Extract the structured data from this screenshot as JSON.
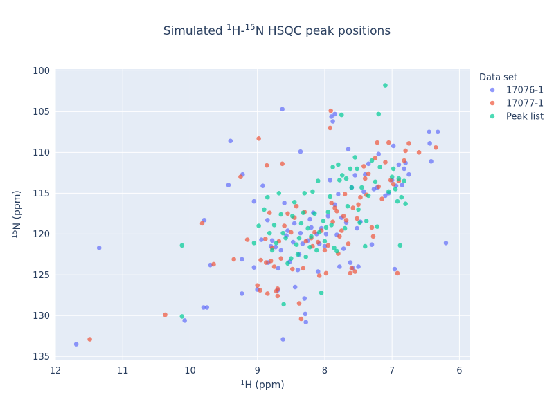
{
  "chart_data": {
    "type": "scatter",
    "title": {
      "parts": [
        {
          "text": "Simulated "
        },
        {
          "text": "1",
          "sup": true
        },
        {
          "text": "H-"
        },
        {
          "text": "15",
          "sup": true
        },
        {
          "text": "N HSQC peak positions"
        }
      ]
    },
    "xlabel": {
      "parts": [
        {
          "text": "1",
          "sup": true
        },
        {
          "text": "H (ppm)"
        }
      ]
    },
    "ylabel": {
      "parts": [
        {
          "text": "15",
          "sup": true
        },
        {
          "text": "N (ppm)"
        }
      ]
    },
    "xlim": [
      12.0,
      5.85
    ],
    "ylim": [
      135.4,
      99.8
    ],
    "x_reversed": true,
    "y_reversed": true,
    "xticks": [
      12,
      11,
      10,
      9,
      8,
      7,
      6
    ],
    "yticks": [
      100,
      105,
      110,
      115,
      120,
      125,
      130,
      135
    ],
    "grid": true,
    "legend": {
      "title": "Data set",
      "position": "right"
    },
    "series": [
      {
        "name": "17076-1",
        "color": "#636efa",
        "points": [
          [
            11.69,
            133.5
          ],
          [
            11.35,
            121.7
          ],
          [
            10.08,
            130.6
          ],
          [
            9.8,
            129.0
          ],
          [
            9.75,
            129.0
          ],
          [
            9.79,
            118.3
          ],
          [
            9.7,
            123.8
          ],
          [
            9.4,
            108.6
          ],
          [
            9.43,
            114.0
          ],
          [
            9.22,
            112.7
          ],
          [
            9.23,
            123.1
          ],
          [
            9.23,
            127.3
          ],
          [
            9.05,
            116.0
          ],
          [
            9.05,
            124.1
          ],
          [
            9.0,
            126.8
          ],
          [
            8.94,
            120.7
          ],
          [
            8.92,
            114.1
          ],
          [
            8.85,
            118.3
          ],
          [
            8.84,
            123.5
          ],
          [
            8.8,
            121.5
          ],
          [
            8.78,
            120.8
          ],
          [
            8.73,
            121.6
          ],
          [
            8.7,
            126.9
          ],
          [
            8.69,
            124.2
          ],
          [
            8.65,
            122.0
          ],
          [
            8.63,
            104.7
          ],
          [
            8.62,
            132.9
          ],
          [
            8.6,
            116.2
          ],
          [
            8.57,
            120.2
          ],
          [
            8.55,
            119.6
          ],
          [
            8.52,
            123.4
          ],
          [
            8.47,
            121.0
          ],
          [
            8.45,
            118.7
          ],
          [
            8.44,
            126.5
          ],
          [
            8.4,
            124.4
          ],
          [
            8.38,
            122.5
          ],
          [
            8.36,
            109.9
          ],
          [
            8.36,
            119.9
          ],
          [
            8.33,
            121.2
          ],
          [
            8.3,
            127.9
          ],
          [
            8.29,
            129.8
          ],
          [
            8.28,
            130.8
          ],
          [
            8.25,
            120.8
          ],
          [
            8.22,
            118.2
          ],
          [
            8.2,
            119.2
          ],
          [
            8.17,
            117.4
          ],
          [
            8.12,
            120.0
          ],
          [
            8.1,
            124.6
          ],
          [
            8.08,
            121.2
          ],
          [
            8.05,
            119.3
          ],
          [
            8.0,
            121.5
          ],
          [
            7.98,
            120.0
          ],
          [
            7.95,
            117.8
          ],
          [
            7.92,
            113.4
          ],
          [
            7.9,
            105.6
          ],
          [
            7.88,
            106.2
          ],
          [
            7.85,
            105.3
          ],
          [
            7.85,
            116.4
          ],
          [
            7.82,
            120.1
          ],
          [
            7.8,
            115.1
          ],
          [
            7.78,
            124.0
          ],
          [
            7.75,
            118.0
          ],
          [
            7.72,
            121.8
          ],
          [
            7.68,
            118.6
          ],
          [
            7.65,
            109.6
          ],
          [
            7.62,
            123.5
          ],
          [
            7.6,
            114.3
          ],
          [
            7.58,
            124.2
          ],
          [
            7.55,
            112.8
          ],
          [
            7.52,
            119.3
          ],
          [
            7.5,
            124.0
          ],
          [
            7.47,
            118.5
          ],
          [
            7.42,
            114.8
          ],
          [
            7.4,
            112.7
          ],
          [
            7.35,
            111.4
          ],
          [
            7.3,
            121.3
          ],
          [
            7.27,
            114.5
          ],
          [
            7.22,
            114.3
          ],
          [
            7.2,
            110.2
          ],
          [
            7.1,
            115.3
          ],
          [
            7.05,
            115.0
          ],
          [
            7.0,
            113.4
          ],
          [
            6.98,
            109.2
          ],
          [
            6.96,
            124.3
          ],
          [
            6.94,
            114.1
          ],
          [
            6.9,
            111.5
          ],
          [
            6.85,
            114.0
          ],
          [
            6.82,
            112.0
          ],
          [
            6.8,
            111.3
          ],
          [
            6.75,
            112.7
          ],
          [
            6.45,
            107.5
          ],
          [
            6.44,
            108.9
          ],
          [
            6.42,
            111.1
          ],
          [
            6.32,
            107.5
          ],
          [
            6.2,
            121.1
          ]
        ]
      },
      {
        "name": "17077-1",
        "color": "#ef553b",
        "points": [
          [
            11.49,
            132.9
          ],
          [
            10.37,
            129.9
          ],
          [
            9.82,
            118.7
          ],
          [
            9.65,
            123.7
          ],
          [
            9.35,
            123.1
          ],
          [
            9.25,
            113.0
          ],
          [
            9.15,
            120.7
          ],
          [
            9.0,
            126.3
          ],
          [
            8.98,
            108.3
          ],
          [
            8.96,
            126.9
          ],
          [
            8.95,
            123.2
          ],
          [
            8.88,
            120.6
          ],
          [
            8.87,
            123.5
          ],
          [
            8.86,
            111.6
          ],
          [
            8.85,
            127.3
          ],
          [
            8.82,
            117.4
          ],
          [
            8.8,
            123.3
          ],
          [
            8.78,
            121.7
          ],
          [
            8.75,
            124.0
          ],
          [
            8.72,
            127.0
          ],
          [
            8.7,
            126.7
          ],
          [
            8.7,
            127.6
          ],
          [
            8.68,
            120.9
          ],
          [
            8.65,
            123.0
          ],
          [
            8.63,
            111.4
          ],
          [
            8.6,
            119.0
          ],
          [
            8.55,
            117.5
          ],
          [
            8.5,
            119.8
          ],
          [
            8.48,
            124.3
          ],
          [
            8.45,
            118.0
          ],
          [
            8.42,
            116.6
          ],
          [
            8.38,
            128.5
          ],
          [
            8.35,
            130.4
          ],
          [
            8.32,
            124.2
          ],
          [
            8.3,
            117.3
          ],
          [
            8.28,
            120.9
          ],
          [
            8.2,
            120.5
          ],
          [
            8.18,
            121.5
          ],
          [
            8.15,
            119.8
          ],
          [
            8.1,
            121.0
          ],
          [
            8.08,
            125.1
          ],
          [
            8.05,
            119.6
          ],
          [
            8.0,
            122.0
          ],
          [
            7.98,
            124.8
          ],
          [
            7.95,
            121.4
          ],
          [
            7.92,
            107.0
          ],
          [
            7.91,
            104.9
          ],
          [
            7.9,
            116.2
          ],
          [
            7.88,
            118.5
          ],
          [
            7.85,
            116.8
          ],
          [
            7.82,
            117.2
          ],
          [
            7.8,
            122.4
          ],
          [
            7.78,
            120.3
          ],
          [
            7.75,
            119.6
          ],
          [
            7.72,
            117.8
          ],
          [
            7.7,
            115.1
          ],
          [
            7.68,
            118.3
          ],
          [
            7.65,
            121.2
          ],
          [
            7.62,
            124.8
          ],
          [
            7.6,
            124.2
          ],
          [
            7.58,
            116.8
          ],
          [
            7.55,
            124.6
          ],
          [
            7.52,
            118.1
          ],
          [
            7.5,
            116.4
          ],
          [
            7.47,
            115.5
          ],
          [
            7.42,
            111.7
          ],
          [
            7.4,
            113.2
          ],
          [
            7.38,
            115.2
          ],
          [
            7.35,
            112.6
          ],
          [
            7.3,
            119.2
          ],
          [
            7.28,
            120.3
          ],
          [
            7.25,
            110.7
          ],
          [
            7.22,
            108.8
          ],
          [
            7.2,
            114.2
          ],
          [
            7.15,
            115.7
          ],
          [
            7.1,
            111.2
          ],
          [
            7.05,
            108.8
          ],
          [
            7.02,
            113.4
          ],
          [
            6.98,
            113.9
          ],
          [
            6.92,
            124.8
          ],
          [
            6.9,
            113.5
          ],
          [
            6.82,
            111.0
          ],
          [
            6.8,
            109.8
          ],
          [
            6.75,
            108.9
          ],
          [
            6.6,
            110.0
          ],
          [
            6.35,
            109.4
          ]
        ]
      },
      {
        "name": "Peak list",
        "color": "#00cc96",
        "points": [
          [
            10.12,
            121.4
          ],
          [
            10.12,
            130.1
          ],
          [
            9.05,
            121.1
          ],
          [
            8.98,
            119.0
          ],
          [
            8.9,
            117.0
          ],
          [
            8.85,
            115.5
          ],
          [
            8.82,
            119.9
          ],
          [
            8.78,
            122.0
          ],
          [
            8.75,
            118.9
          ],
          [
            8.72,
            121.1
          ],
          [
            8.68,
            115.0
          ],
          [
            8.65,
            117.6
          ],
          [
            8.62,
            119.9
          ],
          [
            8.61,
            128.6
          ],
          [
            8.58,
            120.5
          ],
          [
            8.55,
            123.6
          ],
          [
            8.5,
            123.0
          ],
          [
            8.48,
            117.8
          ],
          [
            8.45,
            116.1
          ],
          [
            8.42,
            121.3
          ],
          [
            8.4,
            122.5
          ],
          [
            8.38,
            120.5
          ],
          [
            8.35,
            118.7
          ],
          [
            8.32,
            117.4
          ],
          [
            8.3,
            115.0
          ],
          [
            8.28,
            122.8
          ],
          [
            8.25,
            119.3
          ],
          [
            8.22,
            121.6
          ],
          [
            8.2,
            120.3
          ],
          [
            8.18,
            114.8
          ],
          [
            8.15,
            117.5
          ],
          [
            8.12,
            122.0
          ],
          [
            8.1,
            113.5
          ],
          [
            8.08,
            119.8
          ],
          [
            8.05,
            127.2
          ],
          [
            8.02,
            118.4
          ],
          [
            8.0,
            120.9
          ],
          [
            7.98,
            119.2
          ],
          [
            7.95,
            117.3
          ],
          [
            7.92,
            115.4
          ],
          [
            7.9,
            118.9
          ],
          [
            7.88,
            111.8
          ],
          [
            7.86,
            121.7
          ],
          [
            7.82,
            122.1
          ],
          [
            7.8,
            111.5
          ],
          [
            7.78,
            113.4
          ],
          [
            7.75,
            105.4
          ],
          [
            7.74,
            112.8
          ],
          [
            7.7,
            119.3
          ],
          [
            7.68,
            113.2
          ],
          [
            7.66,
            116.6
          ],
          [
            7.62,
            112.0
          ],
          [
            7.6,
            114.3
          ],
          [
            7.55,
            110.6
          ],
          [
            7.52,
            112.0
          ],
          [
            7.5,
            117.0
          ],
          [
            7.48,
            118.6
          ],
          [
            7.45,
            114.3
          ],
          [
            7.4,
            121.5
          ],
          [
            7.38,
            118.4
          ],
          [
            7.35,
            115.3
          ],
          [
            7.3,
            111.0
          ],
          [
            7.25,
            113.6
          ],
          [
            7.22,
            119.1
          ],
          [
            7.2,
            105.3
          ],
          [
            7.18,
            111.8
          ],
          [
            7.1,
            101.8
          ],
          [
            7.05,
            114.8
          ],
          [
            7.0,
            113.0
          ],
          [
            6.98,
            112.0
          ],
          [
            6.95,
            114.5
          ],
          [
            6.92,
            116.0
          ],
          [
            6.9,
            113.2
          ],
          [
            6.88,
            121.4
          ],
          [
            6.86,
            115.5
          ],
          [
            6.82,
            113.5
          ],
          [
            6.8,
            116.3
          ]
        ]
      }
    ]
  }
}
